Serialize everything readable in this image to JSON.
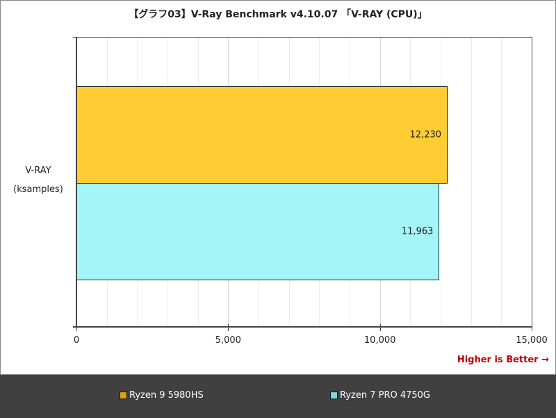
{
  "title": "【グラフ03】V-Ray Benchmark v4.10.07 「V-RAY (CPU)」",
  "note": "Higher is Better →",
  "category": {
    "line1": "V-RAY",
    "line2": "(ksamples)"
  },
  "x_ticks": [
    "0",
    "5,000",
    "10,000",
    "15,000"
  ],
  "bars": [
    {
      "name": "Ryzen 9 5980HS",
      "value": 12230,
      "label": "12,230",
      "color": "#ffcc33"
    },
    {
      "name": "Ryzen 7 PRO 4750G",
      "value": 11963,
      "label": "11,963",
      "color": "#a3f5f8"
    }
  ],
  "legend": [
    {
      "label": "Ryzen 9 5980HS",
      "color": "#d9a514"
    },
    {
      "label": "Ryzen 7 PRO 4750G",
      "color": "#7fd6d8"
    }
  ],
  "chart_data": {
    "type": "bar",
    "orientation": "horizontal",
    "title": "【グラフ03】V-Ray Benchmark v4.10.07 「V-RAY (CPU)」",
    "categories": [
      "V-RAY (ksamples)"
    ],
    "series": [
      {
        "name": "Ryzen 9 5980HS",
        "values": [
          12230
        ]
      },
      {
        "name": "Ryzen 7 PRO 4750G",
        "values": [
          11963
        ]
      }
    ],
    "xlabel": "",
    "ylabel": "",
    "xlim": [
      0,
      15000
    ],
    "x_ticks": [
      0,
      5000,
      10000,
      15000
    ],
    "grid": true,
    "legend_position": "bottom",
    "annotations": [
      "Higher is Better →"
    ]
  }
}
